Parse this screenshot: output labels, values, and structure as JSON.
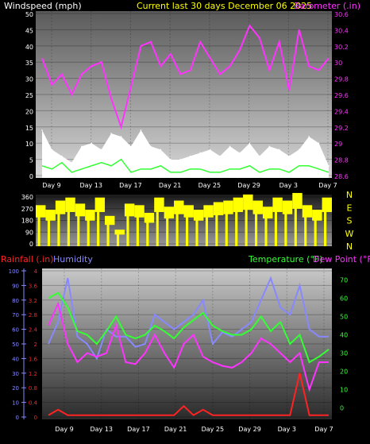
{
  "header": {
    "windspeed_label": "Windspeed (mph)",
    "title": "Current last 30 days December 06 2025",
    "barometer_label": "Barometer (.in)"
  },
  "lower_header": {
    "rainfall_label": "Rainfall (.in)",
    "humidity_label": "Humidity",
    "temperature_label": "Temperature (°F)",
    "dewpoint_label": "Dew Point (°F)"
  },
  "x_days": [
    "Day 9",
    "Day 13",
    "Day 17",
    "Day 21",
    "Day 25",
    "Day 29",
    "Day 3",
    "Day 7"
  ],
  "colors": {
    "windspeed_label": "#ffffff",
    "title": "#ffff00",
    "barometer": "#ff33ff",
    "windspeed_fill": "#ffffff",
    "wind_gust_green": "#33ff33",
    "wind_direction": "#ffff00",
    "rainfall": "#ff2222",
    "humidity": "#8888ff",
    "temperature": "#33ff33",
    "dewpoint": "#ff33ff",
    "axis_text": "#ffffff"
  },
  "chart_data": [
    {
      "type": "area",
      "id": "wind_barometer",
      "y_left": {
        "label": "Windspeed (mph)",
        "ticks": [
          0,
          5,
          10,
          15,
          20,
          25,
          30,
          35,
          40,
          45,
          50
        ],
        "range": [
          0,
          50
        ]
      },
      "y_right": {
        "label": "Barometer (.in)",
        "ticks": [
          "28.6",
          "28.8",
          "29",
          "29.2",
          "29.4",
          "29.6",
          "29.8",
          "30",
          "30.2",
          "30.4",
          "30.6"
        ],
        "range": [
          28.6,
          30.6
        ]
      },
      "x_ticks": [
        "Day 9",
        "Day 13",
        "Day 17",
        "Day 21",
        "Day 25",
        "Day 29",
        "Day 3",
        "Day 7"
      ],
      "series": [
        {
          "name": "Windspeed",
          "axis": "left",
          "x": [
            0,
            1,
            2,
            3,
            4,
            5,
            6,
            7,
            8,
            9,
            10,
            11,
            12,
            13,
            14,
            15,
            16,
            17,
            18,
            19,
            20,
            21,
            22,
            23,
            24,
            25,
            26,
            27,
            28,
            29
          ],
          "values": [
            14,
            8,
            6,
            4,
            9,
            10,
            8,
            13,
            12,
            9,
            14,
            9,
            8,
            5,
            5,
            6,
            7,
            8,
            6,
            9,
            7,
            10,
            6,
            9,
            8,
            6,
            8,
            12,
            10,
            3
          ]
        },
        {
          "name": "Wind Gust",
          "axis": "left",
          "x": [
            0,
            1,
            2,
            3,
            4,
            5,
            6,
            7,
            8,
            9,
            10,
            11,
            12,
            13,
            14,
            15,
            16,
            17,
            18,
            19,
            20,
            21,
            22,
            23,
            24,
            25,
            26,
            27,
            28,
            29
          ],
          "values": [
            3,
            2,
            4,
            1,
            2,
            3,
            4,
            3,
            5,
            1,
            2,
            2,
            3,
            1,
            1,
            2,
            2,
            1,
            1,
            2,
            2,
            3,
            1,
            2,
            2,
            1,
            3,
            3,
            2,
            1
          ]
        },
        {
          "name": "Barometer",
          "axis": "right",
          "x": [
            0,
            1,
            2,
            3,
            4,
            5,
            6,
            7,
            8,
            9,
            10,
            11,
            12,
            13,
            14,
            15,
            16,
            17,
            18,
            19,
            20,
            21,
            22,
            23,
            24,
            25,
            26,
            27,
            28,
            29
          ],
          "values": [
            30.05,
            29.72,
            29.85,
            29.6,
            29.85,
            29.95,
            30.0,
            29.55,
            29.2,
            29.7,
            30.2,
            30.25,
            29.95,
            30.1,
            29.85,
            29.9,
            30.25,
            30.05,
            29.85,
            29.95,
            30.15,
            30.45,
            30.3,
            29.9,
            30.25,
            29.65,
            30.4,
            29.95,
            29.9,
            30.05
          ]
        }
      ]
    },
    {
      "type": "bar",
      "id": "wind_direction",
      "y_left_ticks": [
        0,
        90,
        180,
        270,
        360
      ],
      "y_right_ticks": [
        "N",
        "W",
        "S",
        "E",
        "N"
      ],
      "range": [
        0,
        360
      ],
      "x": [
        0,
        1,
        2,
        3,
        4,
        5,
        6,
        7,
        8,
        9,
        10,
        11,
        12,
        13,
        14,
        15,
        16,
        17,
        18,
        19,
        20,
        21,
        22,
        23,
        24,
        25,
        26,
        27,
        28,
        29
      ],
      "values": [
        250,
        220,
        280,
        300,
        260,
        220,
        300,
        180,
        90,
        260,
        250,
        200,
        300,
        240,
        280,
        250,
        220,
        250,
        270,
        280,
        300,
        320,
        280,
        240,
        300,
        280,
        330,
        250,
        220,
        300
      ]
    },
    {
      "type": "line",
      "id": "rain_humidity_temp",
      "y_rain": {
        "label": "Rainfall (.in)",
        "ticks": [
          "0",
          "0.4",
          "0.8",
          "1.2",
          "1.6",
          "2",
          "2.4",
          "2.8",
          "3.2",
          "3.6",
          "4"
        ],
        "range": [
          0,
          4
        ]
      },
      "y_humidity": {
        "label": "Humidity",
        "ticks": [
          0,
          10,
          20,
          30,
          40,
          50,
          60,
          70,
          80,
          90,
          100
        ],
        "range": [
          0,
          100
        ]
      },
      "y_temp": {
        "label": "Temperature (°F)",
        "ticks": [
          0,
          10,
          20,
          30,
          40,
          50,
          60,
          70
        ],
        "range": [
          -5,
          75
        ]
      },
      "x_ticks": [
        "Day 9",
        "Day 13",
        "Day 17",
        "Day 21",
        "Day 25",
        "Day 29",
        "Day 3",
        "Day 7"
      ],
      "series": [
        {
          "name": "Rainfall",
          "axis": "rain",
          "x": [
            0,
            1,
            2,
            3,
            4,
            5,
            6,
            7,
            8,
            9,
            10,
            11,
            12,
            13,
            14,
            15,
            16,
            17,
            18,
            19,
            20,
            21,
            22,
            23,
            24,
            25,
            26,
            27,
            28,
            29
          ],
          "values": [
            0.05,
            0.2,
            0.05,
            0.05,
            0.05,
            0.05,
            0.05,
            0.05,
            0.05,
            0.05,
            0.05,
            0.05,
            0.05,
            0.05,
            0.3,
            0.05,
            0.2,
            0.05,
            0.05,
            0.05,
            0.05,
            0.05,
            0.05,
            0.05,
            0.05,
            0.05,
            1.2,
            0.05,
            0.05,
            0.05
          ]
        },
        {
          "name": "Humidity",
          "axis": "humidity",
          "x": [
            0,
            1,
            2,
            3,
            4,
            5,
            6,
            7,
            8,
            9,
            10,
            11,
            12,
            13,
            14,
            15,
            16,
            17,
            18,
            19,
            20,
            21,
            22,
            23,
            24,
            25,
            26,
            27,
            28,
            29
          ],
          "values": [
            50,
            65,
            95,
            55,
            50,
            40,
            60,
            55,
            55,
            48,
            50,
            70,
            65,
            60,
            65,
            70,
            80,
            50,
            58,
            55,
            60,
            65,
            80,
            95,
            75,
            70,
            90,
            60,
            55,
            55
          ]
        },
        {
          "name": "Temperature",
          "axis": "temp",
          "x": [
            0,
            1,
            2,
            3,
            4,
            5,
            6,
            7,
            8,
            9,
            10,
            11,
            12,
            13,
            14,
            15,
            16,
            17,
            18,
            19,
            20,
            21,
            22,
            23,
            24,
            25,
            26,
            27,
            28,
            29
          ],
          "values": [
            60,
            63,
            55,
            42,
            40,
            35,
            42,
            50,
            40,
            38,
            40,
            45,
            42,
            38,
            44,
            48,
            52,
            45,
            42,
            40,
            40,
            43,
            50,
            42,
            47,
            35,
            40,
            25,
            28,
            32
          ]
        },
        {
          "name": "Dew Point",
          "axis": "temp",
          "x": [
            0,
            1,
            2,
            3,
            4,
            5,
            6,
            7,
            8,
            9,
            10,
            11,
            12,
            13,
            14,
            15,
            16,
            17,
            18,
            19,
            20,
            21,
            22,
            23,
            24,
            25,
            26,
            27,
            28,
            29
          ],
          "values": [
            45,
            57,
            35,
            25,
            30,
            28,
            30,
            45,
            25,
            24,
            30,
            40,
            30,
            22,
            35,
            40,
            28,
            25,
            23,
            22,
            25,
            30,
            38,
            35,
            30,
            25,
            30,
            10,
            25,
            25
          ]
        }
      ]
    }
  ]
}
